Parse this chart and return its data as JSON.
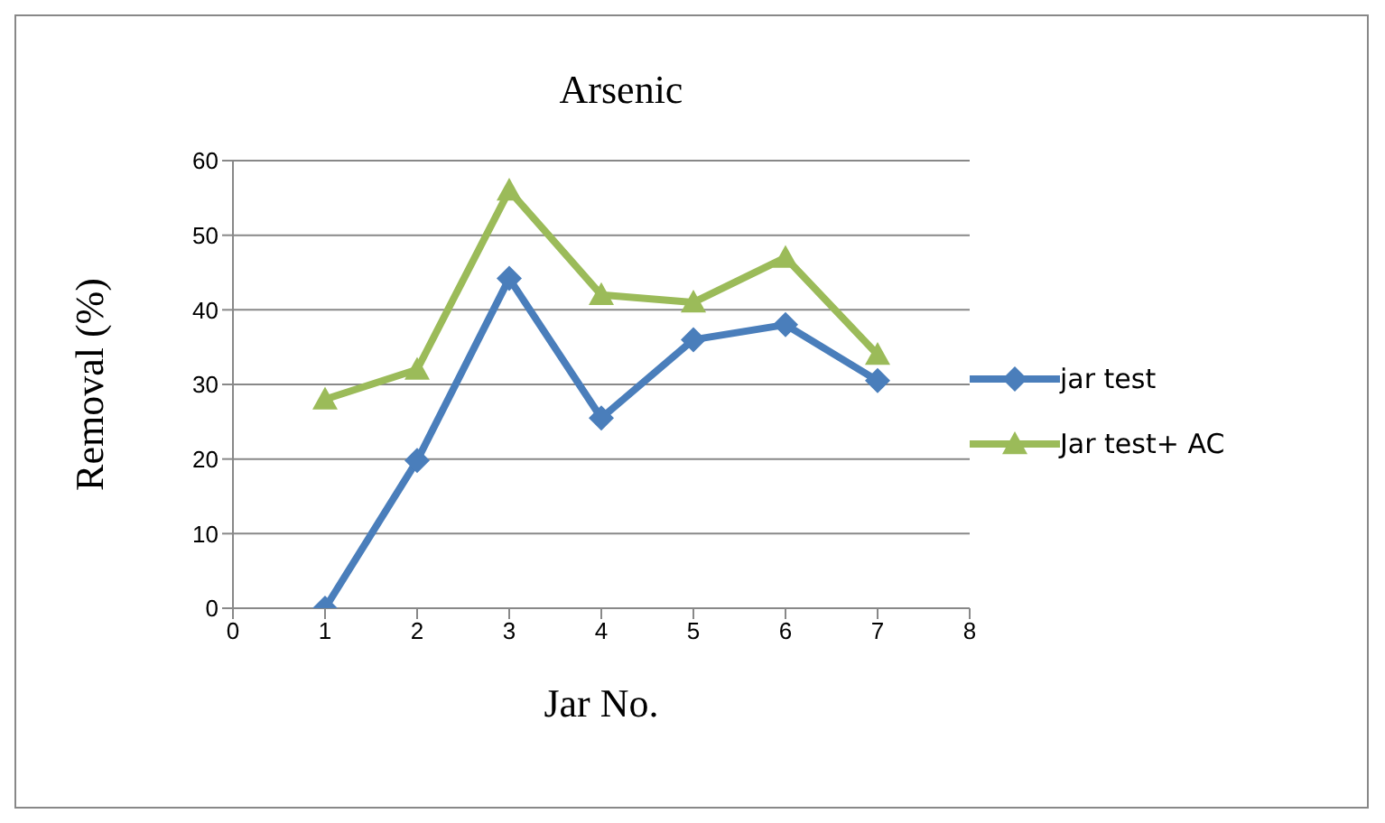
{
  "chart_data": {
    "type": "line",
    "title": "Arsenic",
    "xlabel": "Jar No.",
    "ylabel": "Removal (%)",
    "xlim": [
      0,
      8
    ],
    "xticks": [
      0,
      1,
      2,
      3,
      4,
      5,
      6,
      7,
      8
    ],
    "ylim": [
      0,
      60
    ],
    "yticks": [
      0,
      10,
      20,
      30,
      40,
      50,
      60
    ],
    "grid": "y",
    "legend": "right",
    "line_style": "solid",
    "x": [
      1,
      2,
      3,
      4,
      5,
      6,
      7
    ],
    "series": [
      {
        "name": "jar test",
        "color": "#4a7ebb",
        "marker": "diamond",
        "values": [
          0,
          19.8,
          44.2,
          25.5,
          36,
          38,
          30.5
        ]
      },
      {
        "name": "Jar test+ AC",
        "color": "#9bbb59",
        "marker": "triangle",
        "values": [
          28,
          32,
          56,
          42,
          41,
          47,
          34
        ]
      }
    ]
  }
}
